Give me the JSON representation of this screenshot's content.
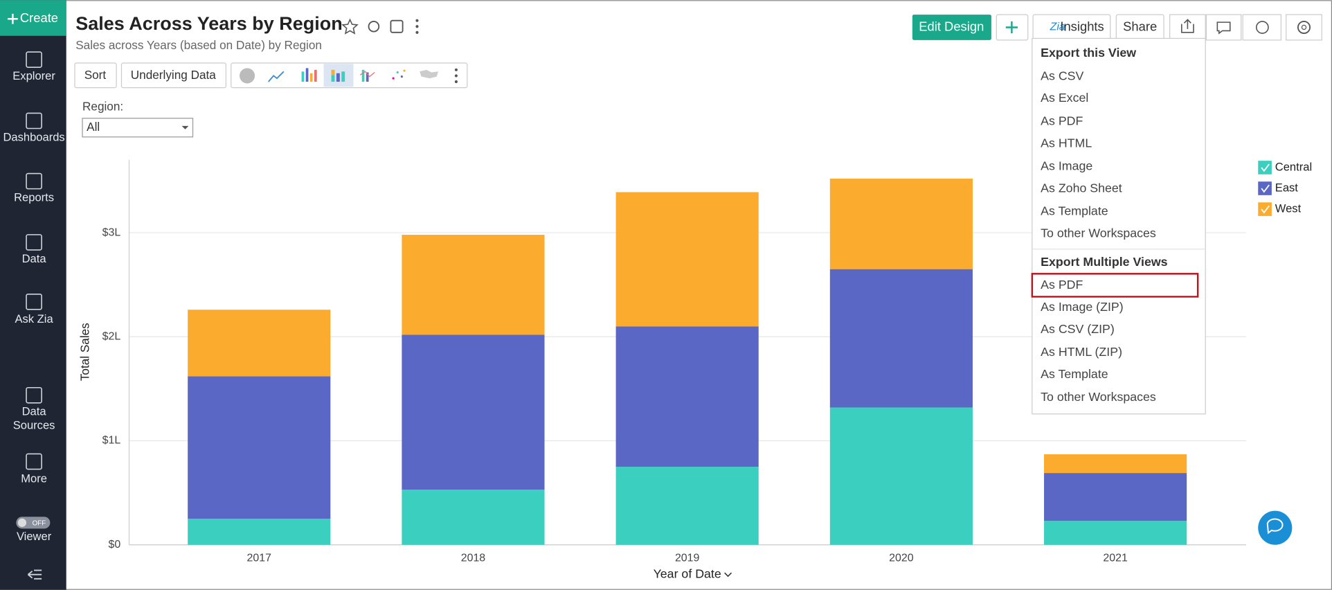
{
  "sidebar": {
    "create": "Create",
    "items": [
      "Explorer",
      "Dashboards",
      "Reports",
      "Data",
      "Ask Zia",
      [
        "Data",
        "Sources"
      ],
      "More",
      "Viewer"
    ],
    "toggle": "OFF"
  },
  "header": {
    "title": "Sales Across Years by Region",
    "subtitle": "Sales across Years (based on Date) by Region"
  },
  "top_buttons": {
    "edit": "Edit Design",
    "insights": "Insights",
    "share": "Share"
  },
  "toolbar": {
    "sort": "Sort",
    "underlying": "Underlying Data"
  },
  "filter": {
    "label": "Region:",
    "value": "All"
  },
  "menu": {
    "sections": [
      {
        "heading": "Export this View",
        "items": [
          "As CSV",
          "As Excel",
          "As PDF",
          "As HTML",
          "As Image",
          "As Zoho Sheet",
          "As Template",
          "To other Workspaces"
        ]
      },
      {
        "heading": "Export Multiple Views",
        "items": [
          "As PDF",
          "As Image (ZIP)",
          "As CSV (ZIP)",
          "As HTML (ZIP)",
          "As Template",
          "To other Workspaces"
        ]
      }
    ]
  },
  "chart_data": {
    "type": "stacked-bar",
    "x_label": "Year of Date",
    "y_label": "Total Sales",
    "categories": [
      "2017",
      "2018",
      "2019",
      "2020",
      "2021"
    ],
    "series": [
      {
        "name": "Central",
        "color": "#3bcfbf",
        "values": [
          0.25,
          0.53,
          0.75,
          1.32,
          0.23
        ]
      },
      {
        "name": "East",
        "color": "#5a67c4",
        "values": [
          1.37,
          1.49,
          1.35,
          1.33,
          0.46
        ]
      },
      {
        "name": "West",
        "color": "#fbab2e",
        "values": [
          0.64,
          0.96,
          1.29,
          0.87,
          0.18
        ]
      }
    ],
    "ylim": [
      0,
      3.7
    ],
    "yticks": [
      {
        "value": 0,
        "label": "$0"
      },
      {
        "value": 1,
        "label": "$1L"
      },
      {
        "value": 2,
        "label": "$2L"
      },
      {
        "value": 3,
        "label": "$3L"
      }
    ],
    "grid": true,
    "legend": "right"
  }
}
